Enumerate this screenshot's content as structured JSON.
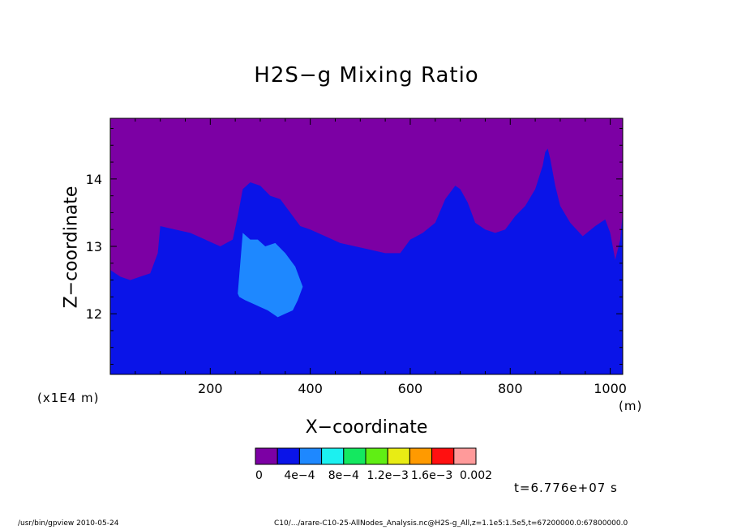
{
  "chart_data": {
    "type": "heatmap",
    "title": "H2S−g Mixing Ratio",
    "xlabel": "X−coordinate",
    "ylabel": "Z−coordinate",
    "x_scale_note": "(x1E4 m)",
    "x_units": "(m)",
    "xlim": [
      0,
      1025
    ],
    "ylim": [
      11.1,
      14.9
    ],
    "x_ticks": [
      200,
      400,
      600,
      800,
      1000
    ],
    "x_tick_labels": [
      "200",
      "400",
      "600",
      "800",
      "1000"
    ],
    "y_ticks": [
      12,
      13,
      14
    ],
    "y_tick_labels": [
      "12",
      "13",
      "14"
    ],
    "colorbar": {
      "colors": [
        "#7c00a4",
        "#0a14e8",
        "#1e88ff",
        "#1cf0f0",
        "#14e860",
        "#60ee14",
        "#e8ec14",
        "#ff9a00",
        "#ff1010",
        "#ff9a9a"
      ],
      "labels": [
        "0",
        "4e−4",
        "8e−4",
        "1.2e−3",
        "1.6e−3",
        "0.002"
      ]
    },
    "series": [
      {
        "name": "4e-4 to 8e-4 boundary (upper edge of blue region, z in x1E4 m)",
        "x": [
          0,
          20,
          40,
          60,
          80,
          95,
          100,
          130,
          160,
          190,
          220,
          245,
          255,
          265,
          280,
          300,
          320,
          340,
          360,
          380,
          400,
          430,
          460,
          490,
          520,
          550,
          580,
          600,
          625,
          650,
          670,
          690,
          700,
          715,
          730,
          750,
          770,
          790,
          810,
          830,
          850,
          865,
          870,
          875,
          880,
          890,
          900,
          920,
          945,
          970,
          990,
          1000,
          1010,
          1020,
          1025
        ],
        "y": [
          12.65,
          12.55,
          12.5,
          12.55,
          12.6,
          12.9,
          13.3,
          13.25,
          13.2,
          13.1,
          13.0,
          13.1,
          13.45,
          13.85,
          13.95,
          13.9,
          13.75,
          13.7,
          13.5,
          13.3,
          13.25,
          13.15,
          13.05,
          13.0,
          12.95,
          12.9,
          12.9,
          13.1,
          13.2,
          13.35,
          13.7,
          13.9,
          13.85,
          13.65,
          13.35,
          13.25,
          13.2,
          13.25,
          13.45,
          13.6,
          13.85,
          14.2,
          14.4,
          14.45,
          14.3,
          13.9,
          13.6,
          13.35,
          13.15,
          13.3,
          13.4,
          13.2,
          12.8,
          13.1,
          13.5
        ]
      },
      {
        "name": "8e-4 region (light blue patch, z in x1E4 m)",
        "x": [
          255,
          265,
          280,
          295,
          310,
          330,
          350,
          370,
          385,
          375,
          365,
          350,
          335,
          315,
          300,
          285,
          270,
          258
        ],
        "y": [
          12.3,
          13.2,
          13.1,
          13.1,
          13.0,
          13.05,
          12.9,
          12.7,
          12.4,
          12.2,
          12.05,
          12.0,
          11.95,
          12.05,
          12.1,
          12.15,
          12.2,
          12.25
        ]
      }
    ],
    "time_label": "t=6.776e+07 s"
  },
  "footer": {
    "left": "/usr/bin/gpview   2010-05-24",
    "right": "C10/.../arare-C10-25-AllNodes_Analysis.nc@H2S-g_All,z=1.1e5:1.5e5,t=67200000.0:67800000.0"
  }
}
